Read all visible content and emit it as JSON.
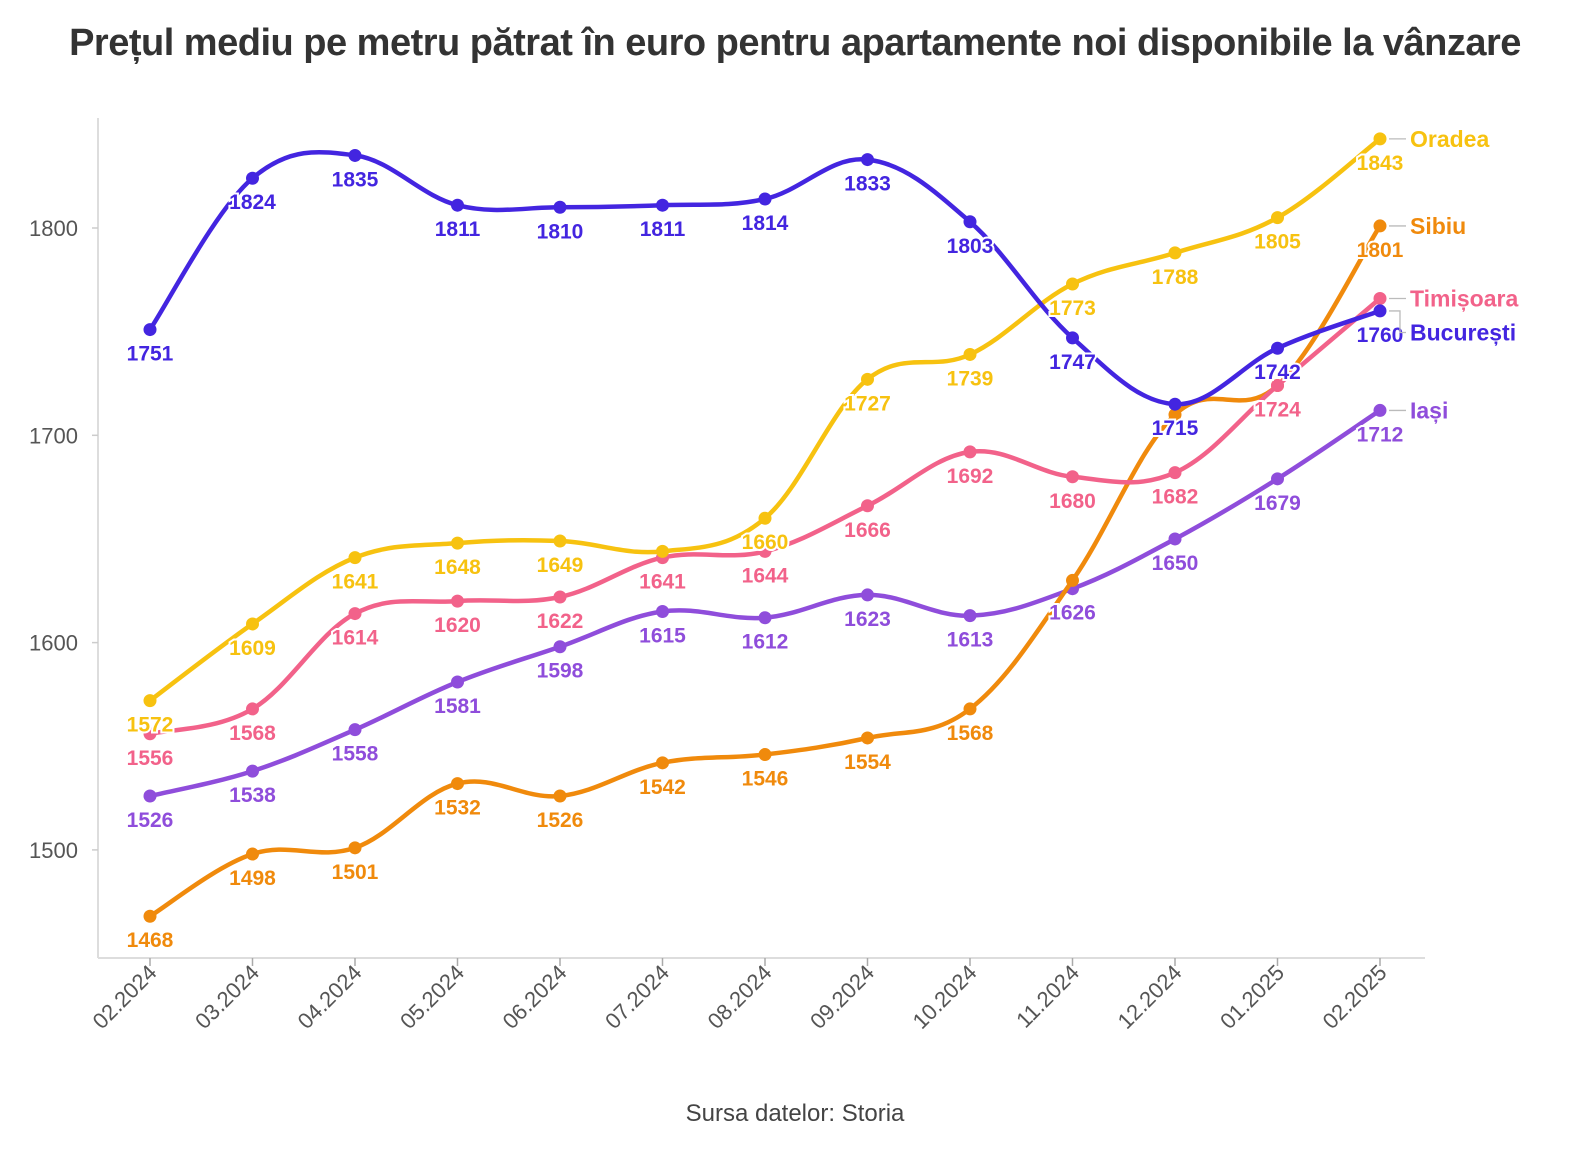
{
  "chart_data": {
    "type": "line",
    "title": "Prețul mediu pe metru pătrat în euro pentru apartamente noi disponibile la vânzare",
    "source": "Sursa datelor: Storia",
    "xlabel": "",
    "ylabel": "",
    "categories": [
      "02.2024",
      "03.2024",
      "04.2024",
      "05.2024",
      "06.2024",
      "07.2024",
      "08.2024",
      "09.2024",
      "10.2024",
      "11.2024",
      "12.2024",
      "01.2025",
      "02.2025"
    ],
    "ylim": [
      1450,
      1855
    ],
    "yticks": [
      1500,
      1600,
      1700,
      1800
    ],
    "grid": false,
    "legend": "end-of-line labels",
    "series": [
      {
        "name": "Iași",
        "color": "#8f4ddb",
        "values": [
          1526,
          1538,
          1558,
          1581,
          1598,
          1615,
          1612,
          1623,
          1613,
          1626,
          1650,
          1679,
          1712
        ]
      },
      {
        "name": "Sibiu",
        "color": "#f08a0c",
        "values": [
          1468,
          1498,
          1501,
          1532,
          1526,
          1542,
          1546,
          1554,
          1568,
          1630,
          1710,
          1724,
          1801
        ]
      },
      {
        "name": "Timișoara",
        "color": "#f2628a",
        "values": [
          1556,
          1568,
          1614,
          1620,
          1622,
          1641,
          1644,
          1666,
          1692,
          1680,
          1682,
          1724,
          1766
        ]
      },
      {
        "name": "Oradea",
        "color": "#f7c210",
        "values": [
          1572,
          1609,
          1641,
          1648,
          1649,
          1644,
          1660,
          1727,
          1739,
          1773,
          1788,
          1805,
          1843
        ]
      },
      {
        "name": "București",
        "color": "#4325e0",
        "values": [
          1751,
          1824,
          1835,
          1811,
          1810,
          1811,
          1814,
          1833,
          1803,
          1747,
          1715,
          1742,
          1760
        ]
      }
    ],
    "labels": {
      "Iași": [
        "1526",
        "1538",
        "1558",
        "1581",
        "1598",
        "1615",
        "1612",
        "1623",
        "1613",
        "1626",
        "1650",
        "1679",
        "1712"
      ],
      "Sibiu": [
        "1468",
        "1498",
        "1501",
        "1532",
        "1526",
        "1542",
        "1546",
        "1554",
        "1568",
        "",
        "",
        "",
        "1801"
      ],
      "Timișoara": [
        "1556",
        "1568",
        "1614",
        "1620",
        "1622",
        "1641",
        "1644",
        "1666",
        "1692",
        "1680",
        "1682",
        "1724",
        ""
      ],
      "Oradea": [
        "1572",
        "1609",
        "1641",
        "1648",
        "1649",
        "",
        "1660",
        "1727",
        "1739",
        "1773",
        "1788",
        "1805",
        "1843"
      ],
      "București": [
        "1751",
        "1824",
        "1835",
        "1811",
        "1810",
        "1811",
        "1814",
        "1833",
        "1803",
        "1747",
        "1715",
        "1742",
        "1760"
      ]
    }
  }
}
